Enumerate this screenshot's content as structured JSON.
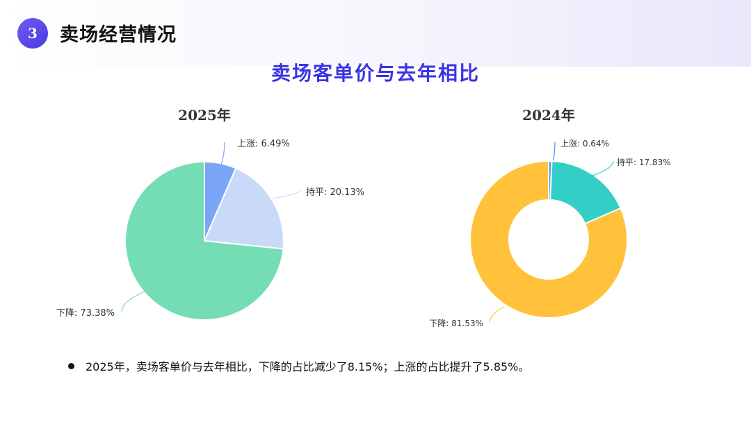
{
  "header": {
    "section_number": "3",
    "section_title": "卖场经营情况"
  },
  "main_title": "卖场客单价与去年相比",
  "chart_data": [
    {
      "type": "pie",
      "title": "2025年",
      "slices": [
        {
          "label": "上涨",
          "value": 6.49,
          "text": "上涨: 6.49%",
          "color": "#7ba6f7"
        },
        {
          "label": "持平",
          "value": 20.13,
          "text": "持平: 20.13%",
          "color": "#c9daf9"
        },
        {
          "label": "下降",
          "value": 73.38,
          "text": "下降: 73.38%",
          "color": "#74ddb4"
        }
      ]
    },
    {
      "type": "pie",
      "subtype": "donut",
      "title": "2024年",
      "slices": [
        {
          "label": "上涨",
          "value": 0.64,
          "text": "上涨: 0.64%",
          "color": "#4a8fe2"
        },
        {
          "label": "持平",
          "value": 17.83,
          "text": "持平: 17.83%",
          "color": "#33cec6"
        },
        {
          "label": "下降",
          "value": 81.53,
          "text": "下降: 81.53%",
          "color": "#ffc23a"
        }
      ]
    }
  ],
  "note": "2025年，卖场客单价与去年相比，下降的占比减少了8.15%；上涨的占比提升了5.85%。"
}
